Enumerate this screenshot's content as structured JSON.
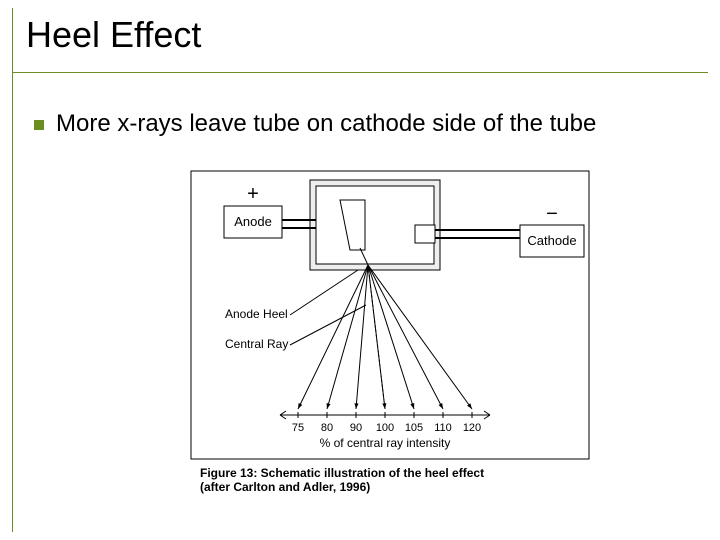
{
  "theme": {
    "accent_color": "#6b8e23",
    "text_color": "#000000",
    "background_color": "#ffffff",
    "diagram_stroke": "#000000",
    "title_fontsize": 36,
    "body_fontsize": 24,
    "caption_fontsize": 12
  },
  "title": "Heel Effect",
  "bullet": {
    "text": "More x-rays leave tube on cathode side of the tube"
  },
  "diagram": {
    "type": "schematic",
    "anode_sign": "+",
    "anode_label": "Anode",
    "cathode_sign": "−",
    "cathode_label": "Cathode",
    "heel_label": "Anode Heel",
    "central_ray_label": "Central Ray",
    "axis_label": "% of central ray intensity",
    "ray_values": [
      75,
      80,
      90,
      100,
      105,
      110,
      120
    ],
    "ray_colors": [
      "#000000",
      "#000000",
      "#000000",
      "#000000",
      "#000000",
      "#000000",
      "#000000"
    ],
    "line_width": 1,
    "background_color": "#ffffff"
  },
  "caption": {
    "line1": "Figure 13: Schematic illustration of the heel effect",
    "line2": "(after Carlton and Adler, 1996)"
  }
}
